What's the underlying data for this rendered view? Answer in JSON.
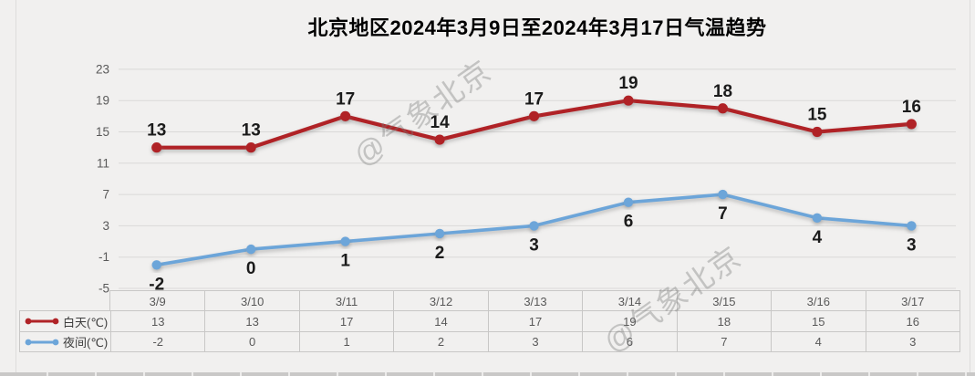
{
  "title": "北京地区2024年3月9日至2024年3月17日气温趋势",
  "watermark": {
    "text": "@气象北京"
  },
  "colors": {
    "background": "#f1f0ef",
    "day": "#b02327",
    "night": "#6ca5d9",
    "gridline": "#dad9d8",
    "axis_text": "#595959",
    "data_label": "#1b1b1b",
    "table_border": "#c8c7c6",
    "table_text": "#595959"
  },
  "chart_data": {
    "type": "line",
    "title": "北京地区2024年3月9日至2024年3月17日气温趋势",
    "categories": [
      "3/9",
      "3/10",
      "3/11",
      "3/12",
      "3/13",
      "3/14",
      "3/15",
      "3/16",
      "3/17"
    ],
    "series": [
      {
        "name": "白天(℃)",
        "values": [
          13,
          13,
          17,
          14,
          17,
          19,
          18,
          15,
          16
        ],
        "color": "#b02327",
        "label_position": "above"
      },
      {
        "name": "夜间(℃)",
        "values": [
          -2,
          0,
          1,
          2,
          3,
          6,
          7,
          4,
          3
        ],
        "color": "#6ca5d9",
        "label_position": "below"
      }
    ],
    "ylim": [
      -5,
      23
    ],
    "yticks": [
      23,
      19,
      15,
      11,
      7,
      3,
      -1,
      -5
    ],
    "grid": true,
    "legend_position": "table-left",
    "data_table": true
  }
}
